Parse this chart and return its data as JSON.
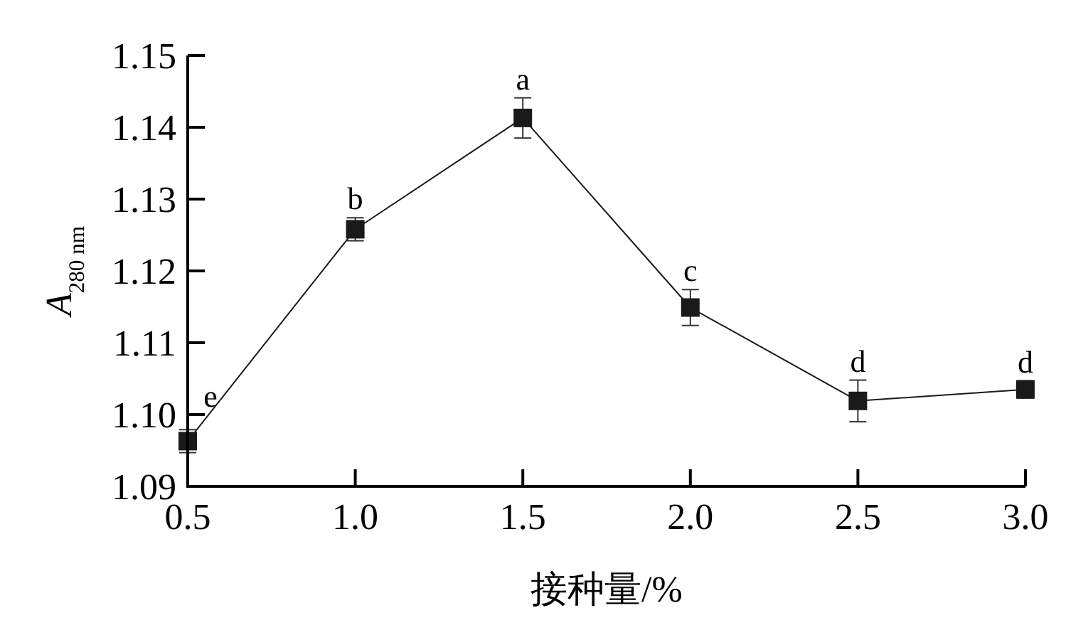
{
  "chart_data": {
    "type": "line",
    "xlabel": "接种量/%",
    "ylabel": "A$_{280 nm}$",
    "x": [
      0.5,
      1.0,
      1.5,
      2.0,
      2.5,
      3.0
    ],
    "series": [
      {
        "color": "#1a1a1a",
        "values": [
          1.0963,
          1.1258,
          1.1413,
          1.1149,
          1.1019,
          1.1035
        ],
        "errors": [
          0.0016,
          0.0016,
          0.0028,
          0.0025,
          0.0029,
          0.0012
        ]
      }
    ],
    "xlim": [
      0.5,
      3.0
    ],
    "xticks": [
      0.5,
      {
        "value": 1.0,
        "label": "1.0"
      },
      1.5,
      {
        "value": 2.0,
        "label": "2.0"
      },
      2.5,
      {
        "value": 3.0,
        "label": "3.0"
      }
    ],
    "ylim": [
      1.09,
      1.15
    ],
    "yticks": [
      1.09,
      {
        "value": 1.1,
        "label": "1.10"
      },
      1.11,
      1.12,
      1.13,
      1.14,
      1.15
    ],
    "annotations": [
      {
        "text": "e",
        "x": 0.5,
        "y": 1.0979
      },
      {
        "text": "b",
        "x": 1.0,
        "y": 1.1274
      },
      {
        "text": "a",
        "x": 1.5,
        "y": 1.1441
      },
      {
        "text": "c",
        "x": 2.0,
        "y": 1.1174
      },
      {
        "text": "d",
        "x": 2.5,
        "y": 1.1048
      },
      {
        "text": "d",
        "x": 3.0,
        "y": 1.1047
      }
    ],
    "marker": "square",
    "line_style": "solid",
    "grid": false
  }
}
